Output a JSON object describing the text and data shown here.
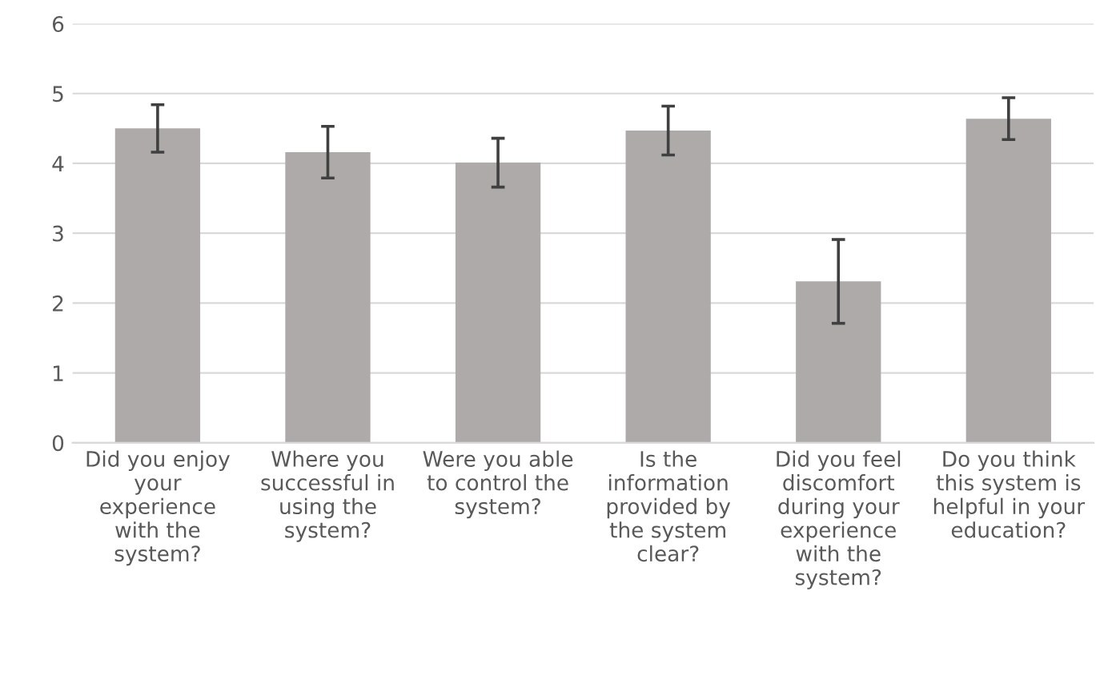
{
  "chart_data": {
    "type": "bar",
    "categories": [
      "Did you enjoy\nyour\nexperience\nwith the\nsystem?",
      "Where you\nsuccessful in\nusing the\nsystem?",
      "Were you able\nto control the\nsystem?",
      "Is the\ninformation\nprovided by\nthe system\nclear?",
      "Did you feel\ndiscomfort\nduring your\nexperience\nwith the\nsystem?",
      "Do you think\nthis system is\nhelpful in your\neducation?"
    ],
    "values": [
      4.5,
      4.16,
      4.01,
      4.47,
      2.31,
      4.64
    ],
    "errors": [
      0.34,
      0.37,
      0.35,
      0.35,
      0.6,
      0.3
    ],
    "color": "#aeaaaa",
    "ylim": [
      0,
      6
    ],
    "yticks": [
      0,
      1,
      2,
      3,
      4,
      5,
      6
    ],
    "grid": "y"
  }
}
